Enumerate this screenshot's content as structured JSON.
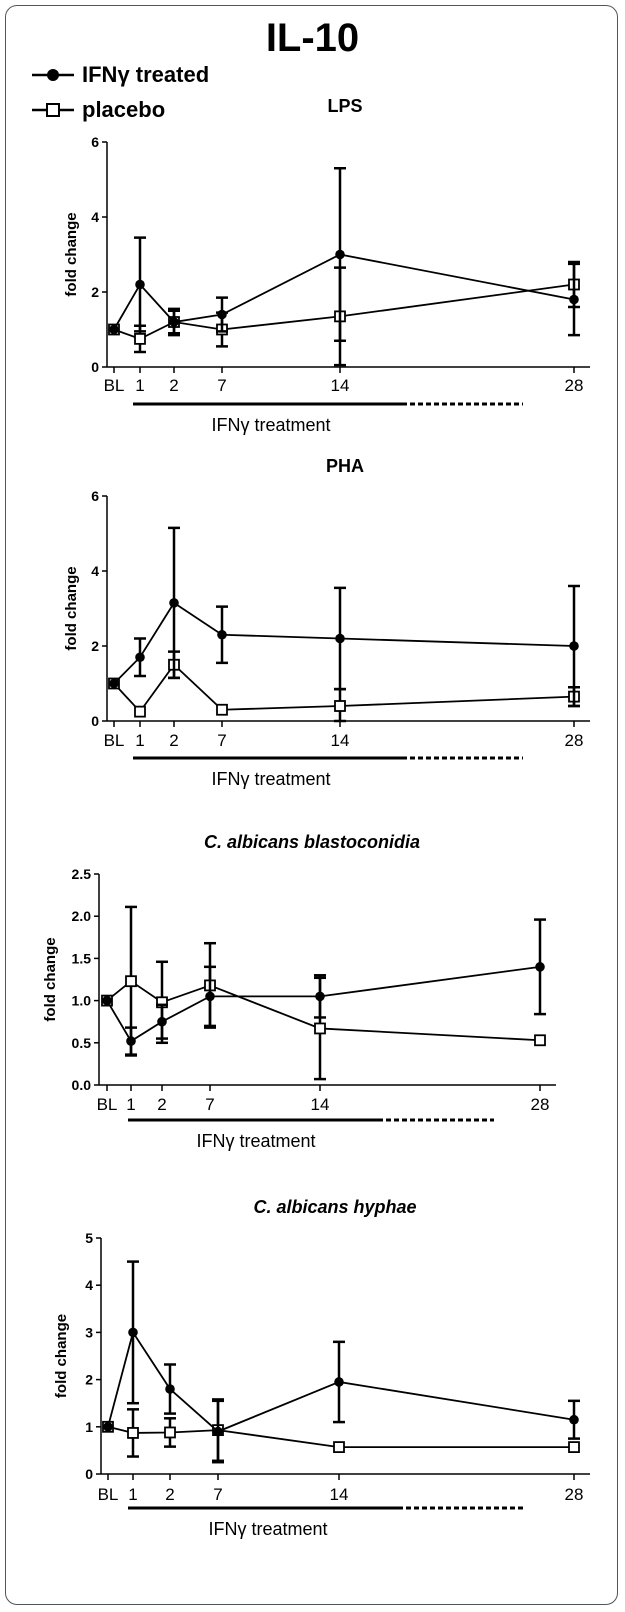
{
  "figure_title": "IL-10",
  "legend": {
    "items": [
      {
        "label": "IFNγ treated",
        "marker": "filled-circle"
      },
      {
        "label": "placebo",
        "marker": "open-square"
      }
    ]
  },
  "colors": {
    "line": "#000000",
    "background": "#ffffff",
    "open_marker_fill": "#ffffff"
  },
  "chart_data": [
    {
      "type": "line",
      "title": "LPS",
      "title_italic": false,
      "ylabel": "fold change",
      "ylim": [
        0,
        6
      ],
      "yticks": [
        "0",
        "2",
        "4",
        "6"
      ],
      "xticklabels": [
        "BL",
        "1",
        "2",
        "7",
        "14",
        "28"
      ],
      "treatment_label": "IFNγ treatment",
      "series": [
        {
          "name": "IFNγ treated",
          "values": [
            1.0,
            2.2,
            1.2,
            1.4,
            3.0,
            1.8
          ],
          "err": [
            0,
            1.25,
            0.35,
            0.45,
            2.3,
            0.95
          ]
        },
        {
          "name": "placebo",
          "values": [
            1.0,
            0.75,
            1.2,
            1.0,
            1.35,
            2.2
          ],
          "err": [
            0,
            0.35,
            0.3,
            0.45,
            1.3,
            0.6
          ]
        }
      ]
    },
    {
      "type": "line",
      "title": "PHA",
      "title_italic": false,
      "ylabel": "fold change",
      "ylim": [
        0,
        6
      ],
      "yticks": [
        "0",
        "2",
        "4",
        "6"
      ],
      "xticklabels": [
        "BL",
        "1",
        "2",
        "7",
        "14",
        "28"
      ],
      "treatment_label": "IFNγ treatment",
      "series": [
        {
          "name": "IFNγ treated",
          "values": [
            1.0,
            1.7,
            3.15,
            2.3,
            2.2,
            2.0
          ],
          "err": [
            0,
            0.5,
            2.0,
            0.75,
            1.35,
            1.6
          ]
        },
        {
          "name": "placebo",
          "values": [
            1.0,
            0.25,
            1.5,
            0.3,
            0.4,
            0.65
          ],
          "err": [
            0,
            0,
            0.35,
            0,
            0.45,
            0.25
          ]
        }
      ]
    },
    {
      "type": "line",
      "title": "C. albicans blastoconidia",
      "title_italic": true,
      "ylabel": "fold change",
      "ylim": [
        0,
        2.5
      ],
      "yticks": [
        "0.0",
        "0.5",
        "1.0",
        "1.5",
        "2.0",
        "2.5"
      ],
      "xticklabels": [
        "BL",
        "1",
        "2",
        "7",
        "14",
        "28"
      ],
      "treatment_label": "IFNγ treatment",
      "series": [
        {
          "name": "IFNγ treated",
          "values": [
            1.0,
            0.52,
            0.75,
            1.05,
            1.05,
            1.4
          ],
          "err": [
            0,
            0.16,
            0.2,
            0.35,
            0.25,
            0.56
          ]
        },
        {
          "name": "placebo",
          "values": [
            1.0,
            1.23,
            0.98,
            1.18,
            0.67,
            0.53
          ],
          "err": [
            0,
            0.88,
            0.48,
            0.5,
            0.6,
            0
          ]
        }
      ]
    },
    {
      "type": "line",
      "title": "C. albicans hyphae",
      "title_italic": true,
      "ylabel": "fold change",
      "ylim": [
        0,
        5
      ],
      "yticks": [
        "0",
        "1",
        "2",
        "3",
        "4",
        "5"
      ],
      "xticklabels": [
        "BL",
        "1",
        "2",
        "7",
        "14",
        "28"
      ],
      "treatment_label": "IFNγ treatment",
      "series": [
        {
          "name": "IFNγ treated",
          "values": [
            1.0,
            3.0,
            1.8,
            0.9,
            1.95,
            1.15
          ],
          "err": [
            0,
            1.5,
            0.52,
            0.65,
            0.85,
            0.4
          ]
        },
        {
          "name": "placebo",
          "values": [
            1.0,
            0.87,
            0.88,
            0.93,
            0.57,
            0.57
          ],
          "err": [
            0,
            0.5,
            0.3,
            0.65,
            0,
            0
          ]
        }
      ]
    }
  ]
}
